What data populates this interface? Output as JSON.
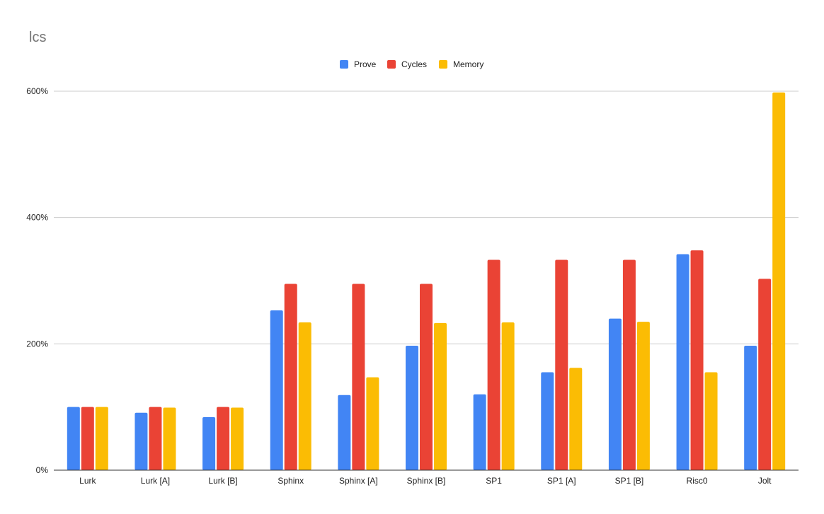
{
  "chart_data": {
    "type": "bar",
    "title": "lcs",
    "xlabel": "",
    "ylabel": "",
    "categories": [
      "Lurk",
      "Lurk [A]",
      "Lurk [B]",
      "Sphinx",
      "Sphinx [A]",
      "Sphinx [B]",
      "SP1",
      "SP1 [A]",
      "SP1 [B]",
      "Risc0",
      "Jolt"
    ],
    "series": [
      {
        "name": "Prove",
        "color": "#4285F4",
        "values": [
          100,
          91,
          84,
          253,
          119,
          197,
          120,
          155,
          240,
          342,
          197
        ]
      },
      {
        "name": "Cycles",
        "color": "#EA4335",
        "values": [
          100,
          100,
          100,
          295,
          295,
          295,
          333,
          333,
          333,
          348,
          303
        ]
      },
      {
        "name": "Memory",
        "color": "#FBBC04",
        "values": [
          100,
          99,
          99,
          234,
          147,
          233,
          234,
          162,
          235,
          155,
          598
        ]
      }
    ],
    "ylim": [
      0,
      600
    ],
    "yticks": [
      0,
      200,
      400,
      600
    ],
    "ytick_labels": [
      "0%",
      "200%",
      "400%",
      "600%"
    ],
    "grid": true,
    "legend": "top-center"
  }
}
